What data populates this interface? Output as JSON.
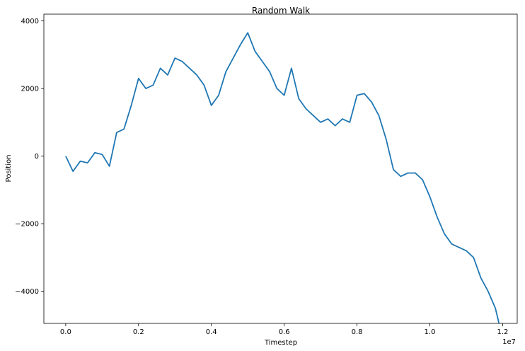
{
  "chart_data": {
    "type": "line",
    "title": "Random Walk",
    "xlabel": "Timestep",
    "ylabel": "Position",
    "x_offset_text": "1e7",
    "xlim": [
      -0.06,
      1.24
    ],
    "ylim": [
      -4950,
      4200
    ],
    "x_ticks": [
      0.0,
      0.2,
      0.4,
      0.6,
      0.8,
      1.0,
      1.2
    ],
    "x_tick_labels": [
      "0.0",
      "0.2",
      "0.4",
      "0.6",
      "0.8",
      "1.0",
      "1.2"
    ],
    "y_ticks": [
      -4000,
      -2000,
      0,
      2000,
      4000
    ],
    "y_tick_labels": [
      "−4000",
      "−2000",
      "0",
      "2000",
      "4000"
    ],
    "grid": false,
    "series": [
      {
        "color": "#1f77b4",
        "x": [
          0.0,
          0.02,
          0.04,
          0.06,
          0.08,
          0.1,
          0.12,
          0.14,
          0.16,
          0.18,
          0.2,
          0.22,
          0.24,
          0.26,
          0.28,
          0.3,
          0.32,
          0.34,
          0.36,
          0.38,
          0.4,
          0.42,
          0.44,
          0.46,
          0.48,
          0.5,
          0.52,
          0.54,
          0.56,
          0.58,
          0.6,
          0.62,
          0.64,
          0.66,
          0.68,
          0.7,
          0.72,
          0.74,
          0.76,
          0.78,
          0.8,
          0.82,
          0.84,
          0.86,
          0.88,
          0.9,
          0.92,
          0.94,
          0.96,
          0.98,
          1.0,
          1.02,
          1.04,
          1.06,
          1.08,
          1.1,
          1.12,
          1.14,
          1.16,
          1.18,
          1.19
        ],
        "y": [
          0,
          -450,
          -150,
          -200,
          100,
          50,
          -300,
          700,
          800,
          1500,
          2300,
          2000,
          2100,
          2600,
          2400,
          2900,
          2800,
          2600,
          2400,
          2100,
          1500,
          1800,
          2500,
          2900,
          3300,
          3650,
          3100,
          2800,
          2500,
          2000,
          1800,
          2600,
          1700,
          1400,
          1200,
          1000,
          1100,
          900,
          1100,
          1000,
          1800,
          1850,
          1600,
          1200,
          500,
          -400,
          -600,
          -500,
          -500,
          -700,
          -1200,
          -1800,
          -2300,
          -2600,
          -2700,
          -2800,
          -3000,
          -3600,
          -4000,
          -4500,
          -4950
        ]
      }
    ]
  }
}
